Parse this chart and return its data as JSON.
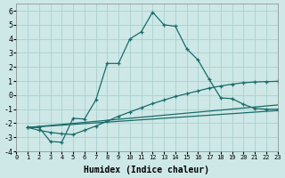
{
  "xlabel": "Humidex (Indice chaleur)",
  "bg_color": "#cde8e6",
  "grid_color": "#aacfcd",
  "line_color": "#1a6b6b",
  "xlim": [
    0,
    23
  ],
  "ylim": [
    -4,
    6.5
  ],
  "xticks": [
    0,
    1,
    2,
    3,
    4,
    5,
    6,
    7,
    8,
    9,
    10,
    11,
    12,
    13,
    14,
    15,
    16,
    17,
    18,
    19,
    20,
    21,
    22,
    23
  ],
  "yticks": [
    -4,
    -3,
    -2,
    -1,
    0,
    1,
    2,
    3,
    4,
    5,
    6
  ],
  "curves": [
    {
      "x": [
        1,
        2,
        3,
        4,
        5,
        6,
        7,
        8,
        9,
        10,
        11,
        12,
        13,
        14,
        15,
        16,
        17,
        18,
        19,
        20,
        21,
        22,
        23
      ],
      "y": [
        -2.3,
        -2.3,
        -3.3,
        -3.35,
        -1.65,
        -1.7,
        -0.35,
        2.25,
        2.25,
        4.0,
        4.5,
        5.9,
        5.0,
        4.9,
        3.3,
        2.5,
        1.1,
        -0.2,
        -0.25,
        -0.65,
        -0.95,
        -1.0,
        -1.0
      ],
      "has_markers": true
    },
    {
      "x": [
        1,
        2,
        3,
        4,
        5,
        6,
        7,
        8,
        9,
        10,
        11,
        12,
        13,
        14,
        15,
        16,
        17,
        18,
        19,
        20,
        21,
        22,
        23
      ],
      "y": [
        -2.3,
        -2.5,
        -2.65,
        -2.75,
        -2.8,
        -2.5,
        -2.2,
        -1.85,
        -1.5,
        -1.2,
        -0.9,
        -0.6,
        -0.35,
        -0.1,
        0.1,
        0.3,
        0.5,
        0.65,
        0.78,
        0.88,
        0.93,
        0.96,
        0.98
      ],
      "has_markers": true
    },
    {
      "x": [
        1,
        23
      ],
      "y": [
        -2.3,
        -0.7
      ],
      "has_markers": false
    },
    {
      "x": [
        1,
        23
      ],
      "y": [
        -2.3,
        -1.1
      ],
      "has_markers": false
    }
  ]
}
